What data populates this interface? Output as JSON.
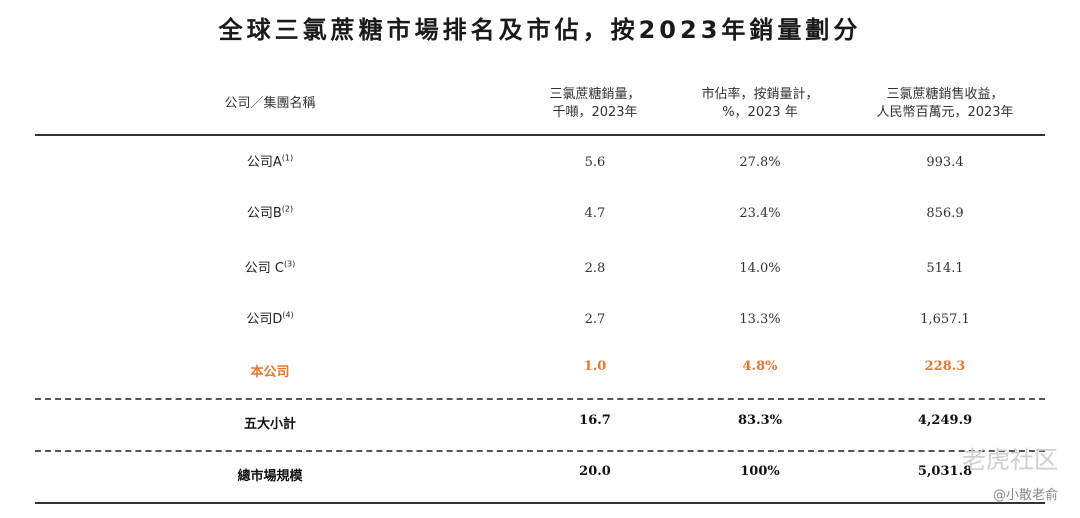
{
  "title": "全球三氯蔗糖市場排名及市佔，按2023年銷量劃分",
  "headers": {
    "name": "公司／集團名稱",
    "volume": [
      "三氯蔗糖銷量，",
      "千噸，2023年"
    ],
    "share": [
      "市佔率，按銷量計，",
      "%，2023 年"
    ],
    "revenue": [
      "三氯蔗糖銷售收益，",
      "人民幣百萬元，2023年"
    ]
  },
  "rows": [
    {
      "name": "公司A",
      "note": "(1)",
      "volume": "5.6",
      "share": "27.8%",
      "revenue": "993.4"
    },
    {
      "name": "公司B",
      "note": "(2)",
      "volume": "4.7",
      "share": "23.4%",
      "revenue": "856.9"
    },
    {
      "name": "公司 C",
      "note": "(3)",
      "volume": "2.8",
      "share": "14.0%",
      "revenue": "514.1"
    },
    {
      "name": "公司D",
      "note": "(4)",
      "volume": "2.7",
      "share": "13.3%",
      "revenue": "1,657.1"
    },
    {
      "name": "本公司",
      "note": "",
      "volume": "1.0",
      "share": "4.8%",
      "revenue": "228.3"
    }
  ],
  "subtotal": {
    "name": "五大小計",
    "volume": "16.7",
    "share": "83.3%",
    "revenue": "4,249.9"
  },
  "total": {
    "name": "總市場規模",
    "volume": "20.0",
    "share": "100%",
    "revenue": "5,031.8"
  },
  "watermark": {
    "brand": "老虎社区",
    "user": "@小散老俞"
  },
  "colors": {
    "highlight": "#e8772e"
  }
}
